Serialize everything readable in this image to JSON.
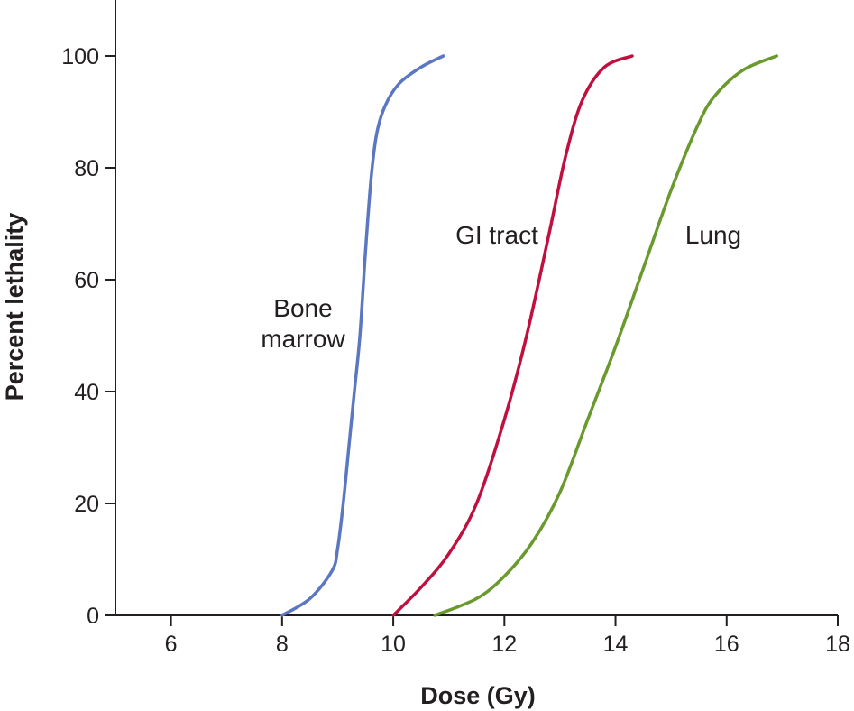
{
  "chart_data": {
    "type": "line",
    "title": "",
    "xlabel": "Dose (Gy)",
    "ylabel": "Percent lethality",
    "xlim": [
      5,
      18
    ],
    "ylim": [
      0,
      110
    ],
    "xticks": [
      6,
      8,
      10,
      12,
      14,
      16,
      18
    ],
    "yticks": [
      0,
      20,
      40,
      60,
      80,
      100
    ],
    "grid": false,
    "series": [
      {
        "name": "Bone marrow",
        "label_lines": [
          "Bone",
          "marrow"
        ],
        "color": "#5b77c2",
        "x": [
          8.0,
          8.5,
          8.9,
          9.0,
          9.1,
          9.2,
          9.3,
          9.4,
          9.5,
          9.6,
          9.7,
          9.85,
          10.1,
          10.5,
          10.9
        ],
        "y": [
          0,
          3,
          8,
          12,
          20,
          30,
          40,
          50,
          65,
          78,
          86,
          91,
          95,
          98,
          100
        ]
      },
      {
        "name": "GI tract",
        "label_lines": [
          "GI tract"
        ],
        "color": "#c0103f",
        "x": [
          10.0,
          10.5,
          11.0,
          11.5,
          12.0,
          12.4,
          12.8,
          13.1,
          13.4,
          13.8,
          14.3
        ],
        "y": [
          0,
          5,
          11,
          20,
          35,
          50,
          68,
          82,
          92,
          98,
          100
        ]
      },
      {
        "name": "Lung",
        "label_lines": [
          "Lung"
        ],
        "color": "#6a9a2e",
        "x": [
          10.75,
          11.5,
          12.0,
          12.5,
          13.0,
          13.5,
          14.0,
          14.5,
          15.0,
          15.5,
          15.8,
          16.3,
          16.9
        ],
        "y": [
          0,
          3,
          7,
          13,
          22,
          35,
          48,
          62,
          76,
          88,
          93,
          97.5,
          100
        ]
      }
    ]
  }
}
